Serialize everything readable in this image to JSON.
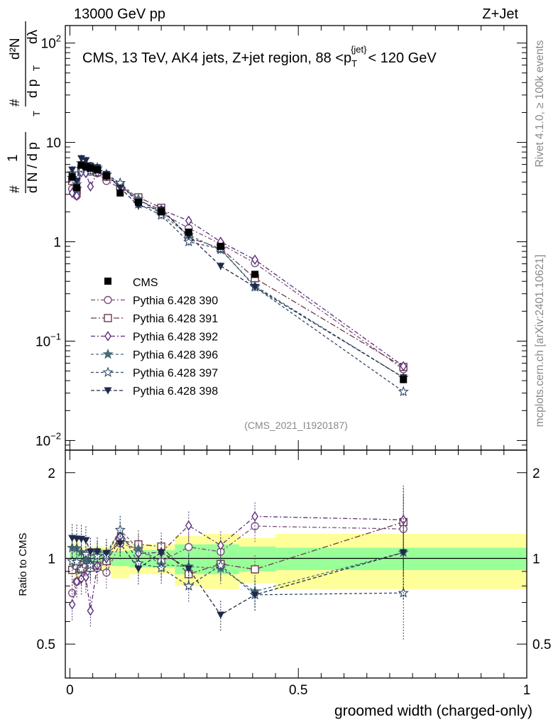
{
  "header": {
    "left": "13000 GeV pp",
    "right": "Z+Jet"
  },
  "side_notes": {
    "top": "Rivet 4.1.0, ≥ 100k events",
    "bottom": "mcplots.cern.ch [arXiv:2401.10621]"
  },
  "chart_data": {
    "type": "line",
    "title": "CMS, 13 TeV, AK4 jets, Z+jet region, 88 <p_T^{jet}< 120 GeV",
    "title_parts": {
      "before": "CMS, 13 TeV, AK4 jets, Z+jet region, 88 <p",
      "sub": "T",
      "sup": "{jet}",
      "after": "< 120 GeV"
    },
    "analysis_label": "(CMS_2021_I1920187)",
    "ylabel_parts": {
      "hash1": "#",
      "one": "1",
      "dn": "d N / d p",
      "t1": "T",
      "hash2": "#",
      "d2n": "d²N",
      "dpt": "d p",
      "t2": "T",
      "dlambda": "dλ"
    },
    "xlabel": "groomed width (charged-only)",
    "ratio_ylabel": "Ratio to CMS",
    "yscale": "log",
    "ylim": [
      0.008,
      150
    ],
    "xlim": [
      -0.01,
      1.0
    ],
    "ratio_ylim": [
      0.38,
      2.4
    ],
    "y_ticks": [
      {
        "value": 0.01,
        "base": "10",
        "exp": "−2"
      },
      {
        "value": 0.1,
        "base": "10",
        "exp": "−1"
      },
      {
        "value": 1,
        "base": "1",
        "exp": ""
      },
      {
        "value": 10,
        "base": "10",
        "exp": ""
      },
      {
        "value": 100,
        "base": "10",
        "exp": "2"
      }
    ],
    "x_ticks": [
      {
        "value": 0,
        "label": "0"
      },
      {
        "value": 0.5,
        "label": "0.5"
      },
      {
        "value": 1,
        "label": "1"
      }
    ],
    "ratio_ticks": [
      {
        "value": 0.5,
        "label": "0.5"
      },
      {
        "value": 1,
        "label": "1"
      },
      {
        "value": 2,
        "label": "2"
      }
    ],
    "x": [
      0.005,
      0.015,
      0.025,
      0.035,
      0.045,
      0.06,
      0.08,
      0.11,
      0.15,
      0.2,
      0.26,
      0.33,
      0.405,
      0.73
    ],
    "bin_edges": [
      0.0,
      0.01,
      0.02,
      0.03,
      0.04,
      0.05,
      0.07,
      0.09,
      0.13,
      0.17,
      0.23,
      0.29,
      0.37,
      0.45,
      1.0
    ],
    "data": {
      "name": "CMS",
      "values": [
        4.5,
        3.5,
        5.9,
        5.7,
        5.5,
        5.3,
        4.6,
        3.1,
        2.5,
        2.0,
        1.25,
        0.9,
        0.47,
        0.041
      ],
      "stat_band": [
        0.08,
        0.1,
        0.06,
        0.05,
        0.05,
        0.06,
        0.06,
        0.06,
        0.07,
        0.07,
        0.12,
        0.12,
        0.1,
        0.09
      ],
      "total_band": [
        0.12,
        0.15,
        0.1,
        0.1,
        0.1,
        0.1,
        0.1,
        0.15,
        0.12,
        0.12,
        0.2,
        0.22,
        0.18,
        0.22
      ]
    },
    "series": [
      {
        "name": "Pythia 6.428 390",
        "color": "#7a4f7e",
        "marker": "circle-open",
        "dash": "6,3,2,3",
        "values": [
          3.4,
          2.9,
          5.6,
          5.1,
          5.8,
          4.9,
          4.1,
          3.5,
          2.7,
          1.95,
          1.37,
          0.95,
          0.61,
          0.052
        ]
      },
      {
        "name": "Pythia 6.428 391",
        "color": "#6e3a4a",
        "marker": "square-open",
        "dash": "8,3,2,3",
        "values": [
          4.1,
          3.3,
          5.4,
          5.3,
          5.1,
          5.0,
          4.5,
          3.6,
          2.8,
          2.2,
          1.1,
          0.86,
          0.43,
          0.055
        ]
      },
      {
        "name": "Pythia 6.428 392",
        "color": "#5a2d7a",
        "marker": "diamond-open",
        "dash": "6,3,2,3",
        "values": [
          3.1,
          2.9,
          5.0,
          4.9,
          3.6,
          5.0,
          4.6,
          3.7,
          2.6,
          2.1,
          1.63,
          1.0,
          0.66,
          0.056
        ]
      },
      {
        "name": "Pythia 6.428 396",
        "color": "#4a6a7a",
        "marker": "star-solid",
        "dash": "4,3",
        "values": [
          4.9,
          3.8,
          6.2,
          5.6,
          5.3,
          5.6,
          4.8,
          3.9,
          2.7,
          1.9,
          1.17,
          0.83,
          0.36,
          0.043
        ]
      },
      {
        "name": "Pythia 6.428 397",
        "color": "#2f4a6a",
        "marker": "star-open",
        "dash": "4,3",
        "values": [
          4.4,
          3.4,
          5.4,
          5.9,
          5.2,
          5.4,
          4.7,
          3.9,
          2.4,
          1.85,
          1.0,
          0.85,
          0.35,
          0.031
        ]
      },
      {
        "name": "Pythia 6.428 398",
        "color": "#1e2a4a",
        "marker": "triangle-down",
        "dash": "5,3",
        "values": [
          5.3,
          4.1,
          6.9,
          6.6,
          5.8,
          5.6,
          4.8,
          3.5,
          2.3,
          2.1,
          1.15,
          0.57,
          0.35,
          0.043
        ]
      }
    ],
    "legend": {
      "position": "middle-left"
    }
  }
}
